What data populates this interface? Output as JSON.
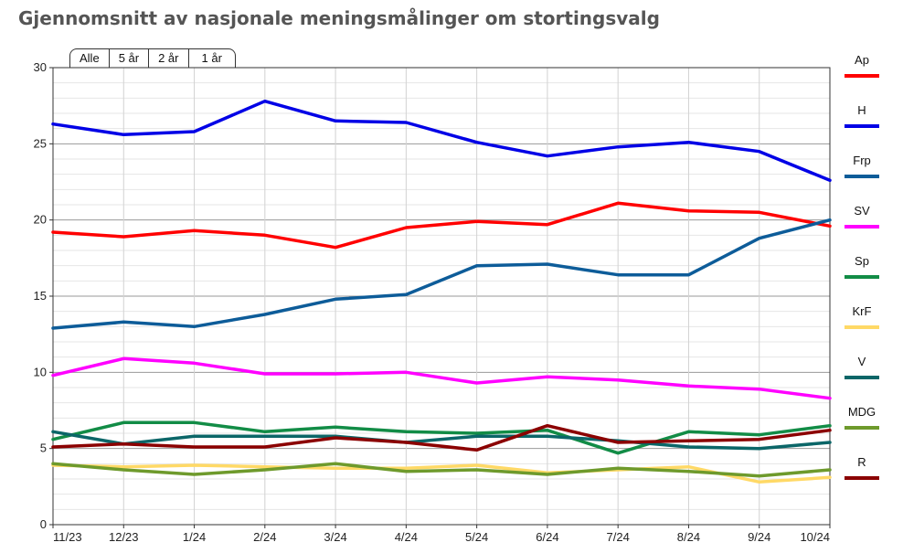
{
  "page": {
    "title": "Gjennomsnitt av nasjonale meningsmålinger om stortingsvalg"
  },
  "tabs": [
    {
      "label": "Alle",
      "active": false
    },
    {
      "label": "5 år",
      "active": false
    },
    {
      "label": "2 år",
      "active": false
    },
    {
      "label": "1 år",
      "active": true
    }
  ],
  "chart_data": {
    "type": "line",
    "title": "Gjennomsnitt av nasjonale meningsmålinger om stortingsvalg",
    "xlabel": "",
    "ylabel": "",
    "categories": [
      "11/23",
      "12/23",
      "1/24",
      "2/24",
      "3/24",
      "4/24",
      "5/24",
      "6/24",
      "7/24",
      "8/24",
      "9/24",
      "10/24"
    ],
    "ylim": [
      0,
      30
    ],
    "yticks": [
      0,
      5,
      10,
      15,
      20,
      25,
      30
    ],
    "grid": true,
    "legend_position": "right",
    "series": [
      {
        "name": "Ap",
        "color": "#ff0000",
        "values": [
          19.2,
          18.9,
          19.3,
          19.0,
          18.2,
          19.5,
          19.9,
          19.7,
          21.1,
          20.6,
          20.5,
          19.6
        ]
      },
      {
        "name": "H",
        "color": "#0000e6",
        "values": [
          26.3,
          25.6,
          25.8,
          27.8,
          26.5,
          26.4,
          25.1,
          24.2,
          24.8,
          25.1,
          24.5,
          22.6
        ]
      },
      {
        "name": "Frp",
        "color": "#0d5c99",
        "values": [
          12.9,
          13.3,
          13.0,
          13.8,
          14.8,
          15.1,
          17.0,
          17.1,
          16.4,
          16.4,
          18.8,
          20.0
        ]
      },
      {
        "name": "SV",
        "color": "#ff00ff",
        "values": [
          9.8,
          10.9,
          10.6,
          9.9,
          9.9,
          10.0,
          9.3,
          9.7,
          9.5,
          9.1,
          8.9,
          8.3
        ]
      },
      {
        "name": "Sp",
        "color": "#128c46",
        "values": [
          5.6,
          6.7,
          6.7,
          6.1,
          6.4,
          6.1,
          6.0,
          6.2,
          4.7,
          6.1,
          5.9,
          6.5
        ]
      },
      {
        "name": "KrF",
        "color": "#ffd966",
        "values": [
          3.9,
          3.8,
          3.9,
          3.8,
          3.7,
          3.7,
          3.9,
          3.4,
          3.6,
          3.8,
          2.8,
          3.1
        ]
      },
      {
        "name": "V",
        "color": "#0b6668",
        "values": [
          6.1,
          5.3,
          5.8,
          5.8,
          5.8,
          5.4,
          5.8,
          5.8,
          5.5,
          5.1,
          5.0,
          5.4
        ]
      },
      {
        "name": "MDG",
        "color": "#6e9a2c",
        "values": [
          4.0,
          3.6,
          3.3,
          3.6,
          4.0,
          3.5,
          3.6,
          3.3,
          3.7,
          3.5,
          3.2,
          3.6
        ]
      },
      {
        "name": "R",
        "color": "#8b0000",
        "values": [
          5.1,
          5.3,
          5.1,
          5.1,
          5.7,
          5.4,
          4.9,
          6.5,
          5.4,
          5.5,
          5.6,
          6.2
        ]
      }
    ]
  }
}
